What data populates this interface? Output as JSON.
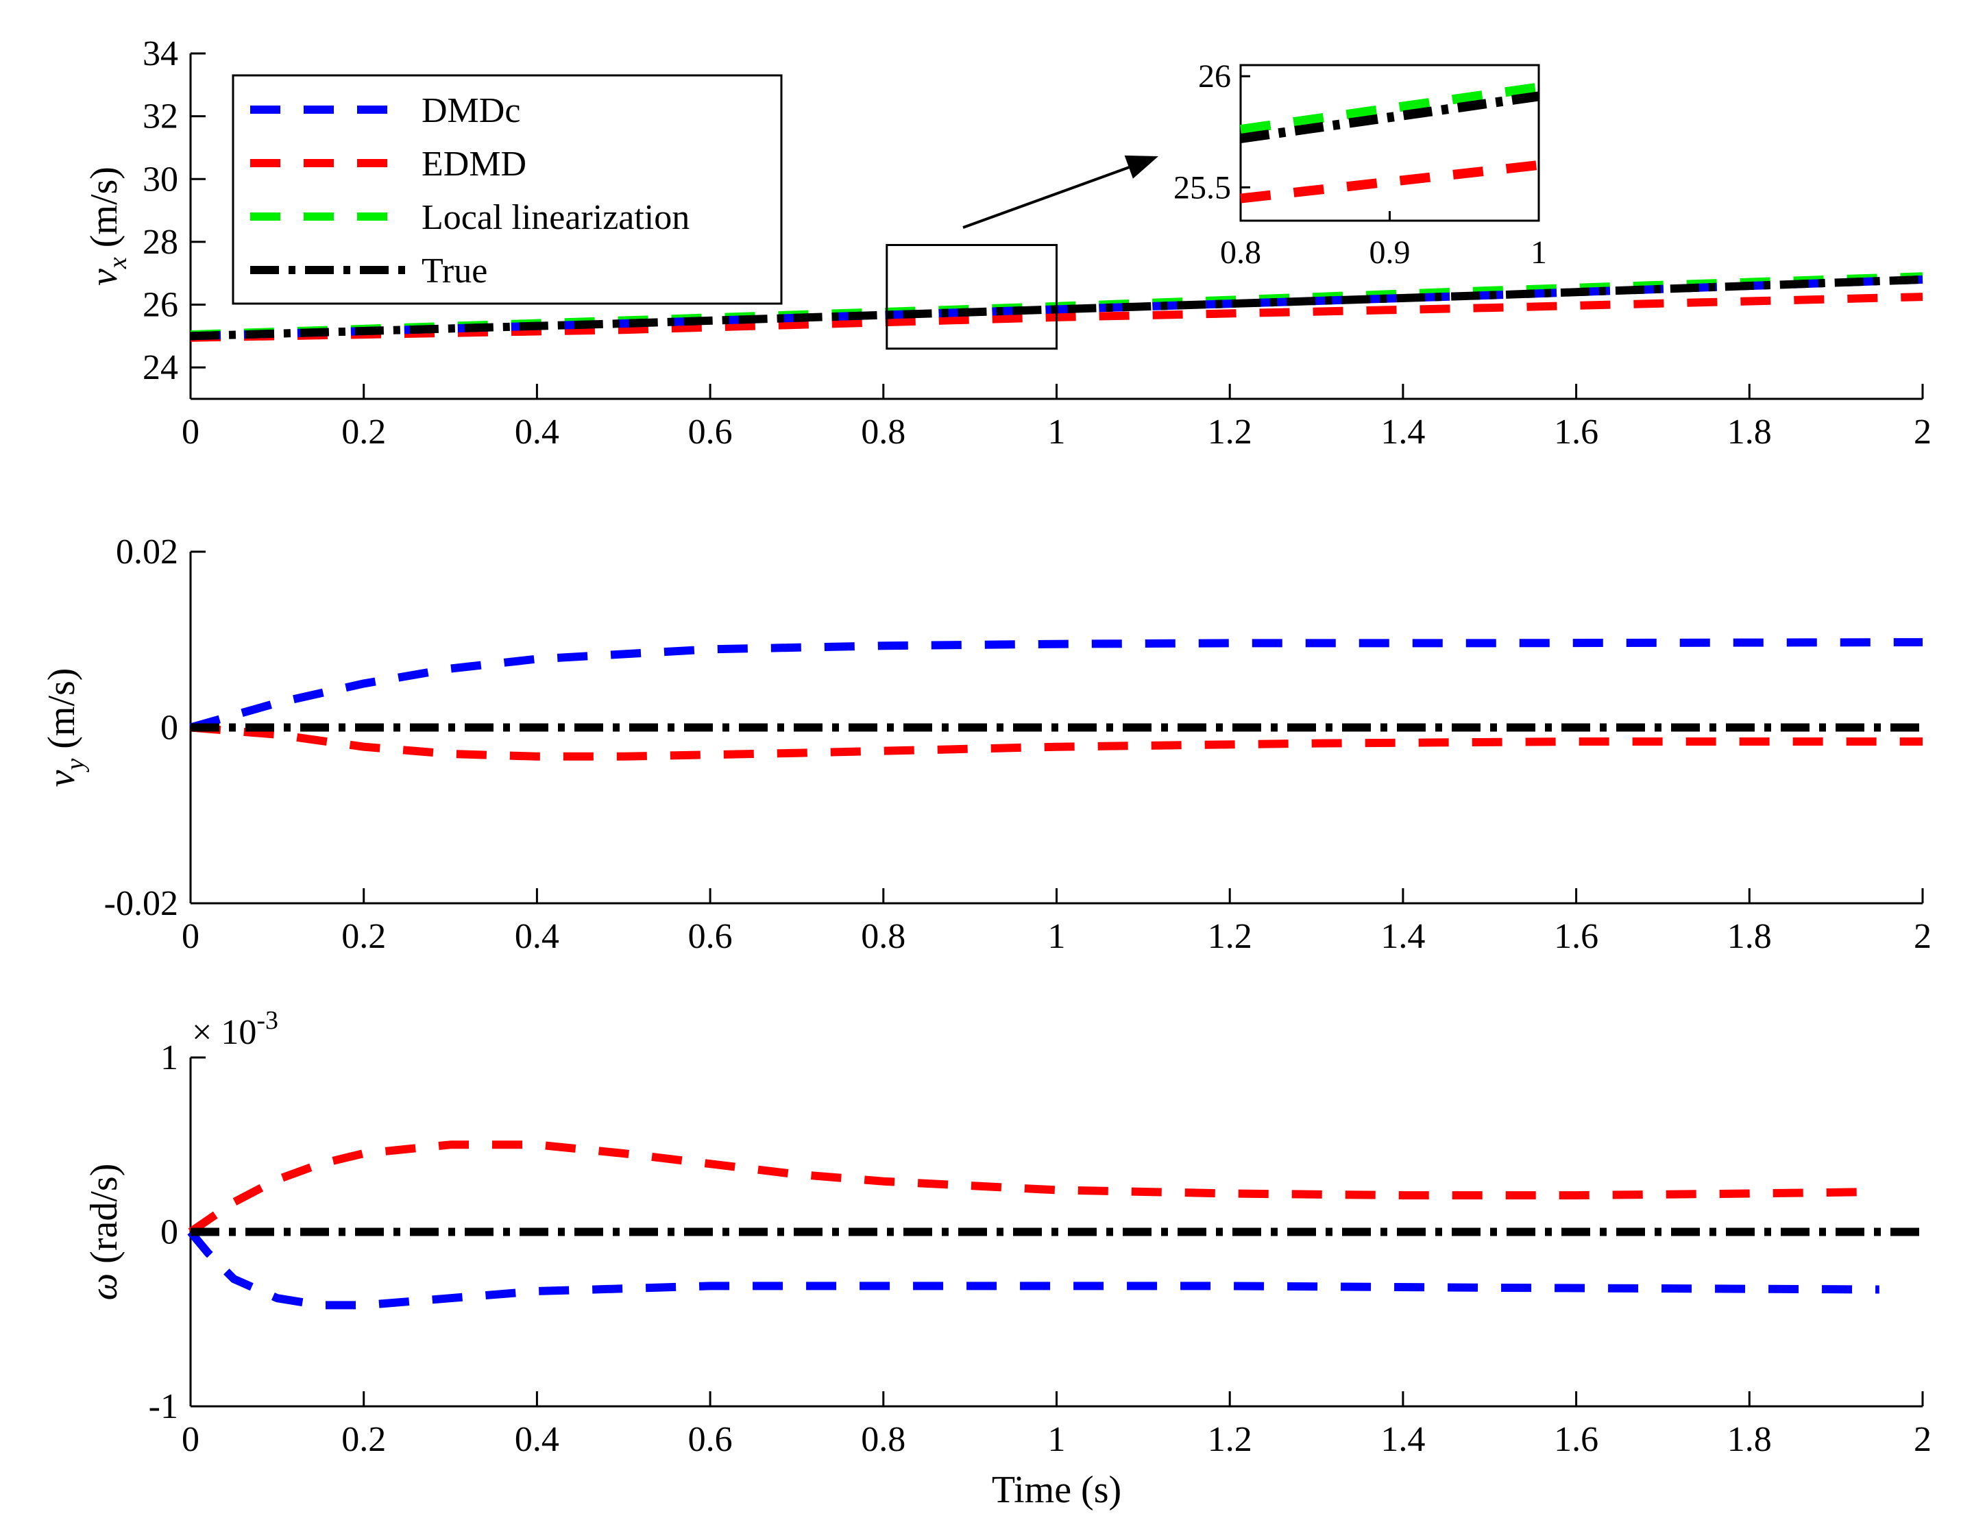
{
  "colors": {
    "DMDc": "#0000ff",
    "EDMD": "#ff0000",
    "Local linearization": "#00ee00",
    "True": "#000000"
  },
  "legend": [
    "DMDc",
    "EDMD",
    "Local linearization",
    "True"
  ],
  "chart_data": [
    {
      "type": "line",
      "id": "vx",
      "ylabel_main": "v",
      "ylabel_sub": "x",
      "ylabel_unit": "(m/s)",
      "xlim": [
        0,
        2
      ],
      "ylim": [
        23,
        34
      ],
      "xticks": [
        "0",
        "0.2",
        "0.4",
        "0.6",
        "0.8",
        "1",
        "1.2",
        "1.4",
        "1.6",
        "1.8",
        "2"
      ],
      "yticks": [
        "24",
        "26",
        "28",
        "30",
        "32",
        "34"
      ],
      "series": [
        {
          "name": "Local linearization",
          "x": [
            0,
            0.5,
            1,
            1.5,
            2
          ],
          "y": [
            25.05,
            25.5,
            25.95,
            26.45,
            26.9
          ]
        },
        {
          "name": "EDMD",
          "x": [
            0,
            0.5,
            1,
            1.5,
            2
          ],
          "y": [
            24.95,
            25.2,
            25.6,
            25.9,
            26.25
          ]
        },
        {
          "name": "DMDc",
          "x": [
            0,
            0.5,
            1,
            1.5,
            2
          ],
          "y": [
            25.0,
            25.4,
            25.85,
            26.3,
            26.8
          ]
        },
        {
          "name": "True",
          "x": [
            0,
            0.5,
            1,
            1.5,
            2
          ],
          "y": [
            25.0,
            25.4,
            25.85,
            26.3,
            26.8
          ]
        }
      ],
      "inset": {
        "xlim": [
          0.8,
          1
        ],
        "ylim": [
          25.35,
          26.05
        ],
        "xticks": [
          "0.8",
          "0.9",
          "1"
        ],
        "yticks": [
          "25.5",
          "26"
        ],
        "series": [
          {
            "name": "Local linearization",
            "x": [
              0.8,
              1
            ],
            "y": [
              25.76,
              25.95
            ]
          },
          {
            "name": "EDMD",
            "x": [
              0.8,
              1
            ],
            "y": [
              25.45,
              25.6
            ]
          },
          {
            "name": "True",
            "x": [
              0.8,
              1
            ],
            "y": [
              25.72,
              25.91
            ]
          }
        ]
      }
    },
    {
      "type": "line",
      "id": "vy",
      "ylabel_main": "v",
      "ylabel_sub": "y",
      "ylabel_unit": "(m/s)",
      "xlim": [
        0,
        2
      ],
      "ylim": [
        -0.02,
        0.02
      ],
      "xticks": [
        "0",
        "0.2",
        "0.4",
        "0.6",
        "0.8",
        "1",
        "1.2",
        "1.4",
        "1.6",
        "1.8",
        "2"
      ],
      "yticks": [
        "-0.02",
        "0",
        "0.02"
      ],
      "series": [
        {
          "name": "DMDc",
          "x": [
            0,
            0.1,
            0.2,
            0.3,
            0.4,
            0.6,
            0.8,
            1.0,
            1.2,
            1.5,
            2.0
          ],
          "y": [
            0,
            0.0028,
            0.005,
            0.0067,
            0.0078,
            0.0089,
            0.0093,
            0.0095,
            0.0096,
            0.0096,
            0.0097
          ]
        },
        {
          "name": "EDMD",
          "x": [
            0,
            0.1,
            0.2,
            0.3,
            0.4,
            0.5,
            0.7,
            1.0,
            1.3,
            1.6,
            2.0
          ],
          "y": [
            0,
            -0.0008,
            -0.0022,
            -0.003,
            -0.0033,
            -0.0033,
            -0.0029,
            -0.0022,
            -0.0018,
            -0.0016,
            -0.0016
          ]
        },
        {
          "name": "True",
          "x": [
            0,
            2
          ],
          "y": [
            0,
            0
          ]
        }
      ]
    },
    {
      "type": "line",
      "id": "omega",
      "ylabel_main": "ω",
      "ylabel_unit": "(rad/s)",
      "exponent_base": "× 10",
      "exponent_power": "-3",
      "xlabel": "Time (s)",
      "xlim": [
        0,
        2
      ],
      "ylim": [
        -1,
        1
      ],
      "xticks": [
        "0",
        "0.2",
        "0.4",
        "0.6",
        "0.8",
        "1",
        "1.2",
        "1.4",
        "1.6",
        "1.8",
        "2"
      ],
      "yticks": [
        "-1",
        "0",
        "1"
      ],
      "series": [
        {
          "name": "EDMD",
          "x": [
            0,
            0.05,
            0.1,
            0.15,
            0.2,
            0.3,
            0.4,
            0.5,
            0.6,
            0.7,
            0.8,
            1.0,
            1.2,
            1.4,
            1.6,
            1.8,
            1.95
          ],
          "y": [
            0,
            0.17,
            0.3,
            0.39,
            0.45,
            0.5,
            0.5,
            0.45,
            0.39,
            0.33,
            0.29,
            0.24,
            0.22,
            0.21,
            0.21,
            0.22,
            0.23
          ]
        },
        {
          "name": "DMDc",
          "x": [
            0,
            0.02,
            0.05,
            0.1,
            0.15,
            0.2,
            0.3,
            0.4,
            0.6,
            0.8,
            1.0,
            1.2,
            1.5,
            1.95
          ],
          "y": [
            0,
            -0.12,
            -0.27,
            -0.38,
            -0.42,
            -0.42,
            -0.38,
            -0.34,
            -0.31,
            -0.31,
            -0.31,
            -0.31,
            -0.32,
            -0.33
          ]
        },
        {
          "name": "True",
          "x": [
            0,
            2
          ],
          "y": [
            0,
            0
          ]
        }
      ]
    }
  ]
}
